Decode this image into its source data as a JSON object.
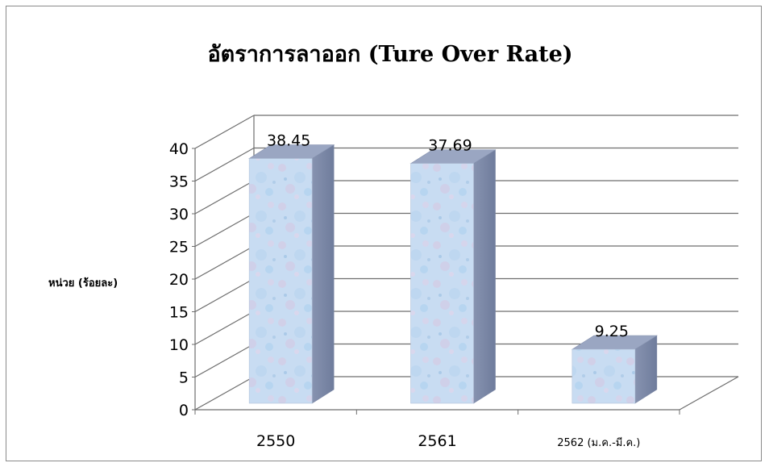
{
  "chart_data": {
    "type": "bar",
    "title": "อัตราการลาออก (Ture Over Rate)",
    "ylabel": "หน่วย (ร้อยละ)",
    "xlabel": "",
    "categories": [
      "2550",
      "2561",
      "2562 (ม.ค.-มี.ค.)"
    ],
    "values": [
      38.45,
      37.69,
      9.25
    ],
    "value_labels": [
      "38.45",
      "37.69",
      "9.25"
    ],
    "ylim": [
      0,
      40
    ],
    "yticks": [
      "0",
      "5",
      "10",
      "15",
      "20",
      "25",
      "30",
      "35",
      "40"
    ],
    "grid": true,
    "style": "3d-column",
    "legend": "none",
    "colors": {
      "bar_front": "#c9dcf0",
      "bar_side": "#7d8aa8",
      "bar_top": "#9aa6c2",
      "grid": "#6e6e6e"
    }
  }
}
